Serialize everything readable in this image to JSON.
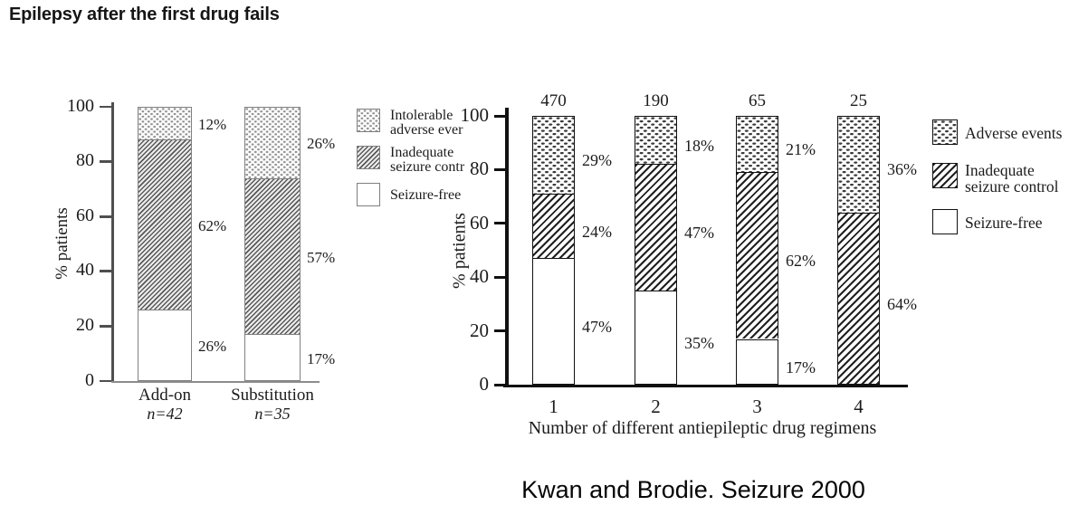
{
  "title": "Epilepsy after the first drug fails",
  "caption": "Kwan and Brodie. Seizure 2000",
  "chart_data": [
    {
      "id": "left",
      "type": "bar",
      "stacked": true,
      "ylabel": "% patients",
      "ylim": [
        0,
        100
      ],
      "yticks": [
        0,
        20,
        40,
        60,
        80,
        100
      ],
      "grid": false,
      "legend_position": "right",
      "categories": [
        "Add-on",
        "Substitution"
      ],
      "category_sublabels": [
        "n=42",
        "n=35"
      ],
      "series": [
        {
          "name": "Seizure-free",
          "pattern": "plain",
          "values": [
            26,
            17
          ]
        },
        {
          "name": "Inadequate seizure control",
          "pattern": "hatch",
          "values": [
            62,
            57
          ]
        },
        {
          "name": "Intolerable adverse events",
          "pattern": "dots",
          "values": [
            12,
            26
          ]
        }
      ],
      "segment_labels": [
        [
          "26%",
          "62%",
          "12%"
        ],
        [
          "17%",
          "57%",
          "26%"
        ]
      ],
      "legend": {
        "items": [
          {
            "pattern": "dots",
            "lines": [
              "Intolerable",
              "adverse ever"
            ]
          },
          {
            "pattern": "hatch",
            "lines": [
              "Inadequate",
              "seizure contr"
            ]
          },
          {
            "pattern": "plain",
            "lines": [
              "Seizure-free"
            ]
          }
        ]
      }
    },
    {
      "id": "right",
      "type": "bar",
      "stacked": true,
      "xlabel": "Number of different antiepileptic drug regimens",
      "ylabel": "% patients",
      "ylim": [
        0,
        100
      ],
      "yticks": [
        0,
        20,
        40,
        60,
        80,
        100
      ],
      "grid": false,
      "legend_position": "right",
      "categories": [
        "1",
        "2",
        "3",
        "4"
      ],
      "bar_top_counts": [
        470,
        190,
        65,
        25
      ],
      "series": [
        {
          "name": "Seizure-free",
          "pattern": "plain",
          "values": [
            47,
            35,
            17,
            0
          ]
        },
        {
          "name": "Inadequate seizure control",
          "pattern": "hatch",
          "values": [
            24,
            47,
            62,
            64
          ]
        },
        {
          "name": "Adverse events",
          "pattern": "dots",
          "values": [
            29,
            18,
            21,
            36
          ]
        }
      ],
      "segment_labels": [
        [
          "47%",
          "24%",
          "29%"
        ],
        [
          "35%",
          "47%",
          "18%"
        ],
        [
          "17%",
          "62%",
          "21%"
        ],
        [
          "64%",
          "36%"
        ]
      ],
      "legend": {
        "items": [
          {
            "pattern": "dots",
            "lines": [
              "Adverse events"
            ]
          },
          {
            "pattern": "hatch",
            "lines": [
              "Inadequate",
              "seizure control"
            ]
          },
          {
            "pattern": "plain",
            "lines": [
              "Seizure-free"
            ]
          }
        ]
      }
    }
  ],
  "colors": {
    "background": "#ffffff",
    "text": "#1c1c1c",
    "left_axis": "#4f4f4f",
    "left_bar_border": "#818181",
    "right_axis": "#111111",
    "right_bar_border": "#111111",
    "hatch_line_left": "#595959",
    "hatch_line_right": "#202020",
    "dot_left": "#8d8d8d",
    "dot_right": "#3b3b3b"
  }
}
